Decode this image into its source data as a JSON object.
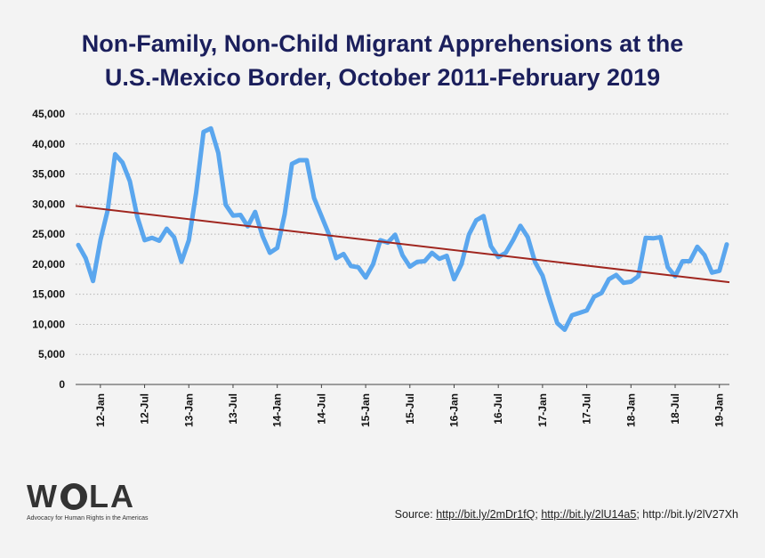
{
  "chart_data": {
    "type": "line",
    "title_lines": [
      "Non-Family, Non-Child Migrant Apprehensions at the",
      "U.S.-Mexico Border, October 2011-February 2019"
    ],
    "xlabel": "",
    "ylabel": "",
    "ylim": [
      0,
      45000
    ],
    "yticks": [
      0,
      5000,
      10000,
      15000,
      20000,
      25000,
      30000,
      35000,
      40000,
      45000
    ],
    "ytick_labels": [
      "0",
      "5,000",
      "10,000",
      "15,000",
      "20,000",
      "25,000",
      "30,000",
      "35,000",
      "40,000",
      "45,000"
    ],
    "xtick_labels": [
      "12-Jan",
      "12-Jul",
      "13-Jan",
      "13-Jul",
      "14-Jan",
      "14-Jul",
      "15-Jan",
      "15-Jul",
      "16-Jan",
      "16-Jul",
      "17-Jan",
      "17-Jul",
      "18-Jan",
      "18-Jul",
      "19-Jan"
    ],
    "xtick_month_index": [
      3,
      9,
      15,
      21,
      27,
      33,
      39,
      45,
      51,
      57,
      63,
      69,
      75,
      81,
      87
    ],
    "x_start": "2011-10",
    "x_end": "2019-02",
    "grid": "horizontal-dotted",
    "series": [
      {
        "name": "Apprehensions",
        "color": "#5aa6ee",
        "values": [
          23200,
          21000,
          17200,
          24000,
          29000,
          38300,
          36900,
          33800,
          27900,
          24000,
          24400,
          23900,
          25900,
          24500,
          20400,
          24000,
          31900,
          42000,
          42600,
          38500,
          29900,
          28100,
          28200,
          26300,
          28700,
          24700,
          21900,
          22700,
          28300,
          36700,
          37300,
          37300,
          31000,
          28000,
          25000,
          21000,
          21700,
          19700,
          19500,
          17800,
          20000,
          24000,
          23600,
          24900,
          21500,
          19600,
          20400,
          20500,
          21900,
          20900,
          21400,
          17500,
          20000,
          24900,
          27300,
          28000,
          23000,
          21200,
          21900,
          24000,
          26400,
          24500,
          20300,
          18100,
          14000,
          10200,
          9100,
          11500,
          11900,
          12300,
          14600,
          15200,
          17500,
          18200,
          16900,
          17100,
          18000,
          24400,
          24300,
          24500,
          19500,
          18000,
          20500,
          20500,
          22900,
          21500,
          18600,
          18900,
          23300
        ]
      },
      {
        "name": "Trend",
        "color": "#a0261f",
        "trend": [
          29700,
          17000
        ]
      }
    ]
  },
  "logo": {
    "text_left": "W",
    "text_right": "LA",
    "tagline": "Advocacy for Human Rights in the Americas"
  },
  "source": {
    "prefix": "Source: ",
    "links": [
      "http://bit.ly/2mDr1fQ",
      "http://bit.ly/2lU14a5"
    ],
    "plain": "http://bit.ly/2lV27Xh"
  }
}
